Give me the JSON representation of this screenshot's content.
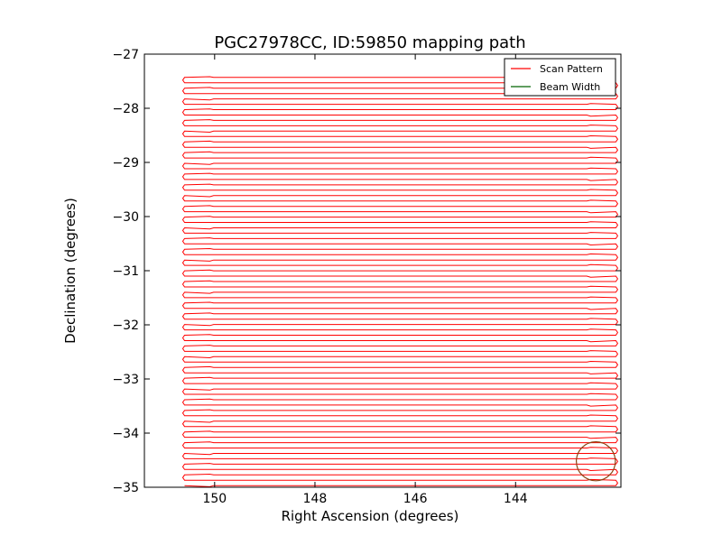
{
  "chart_data": {
    "type": "line",
    "title": "PGC27978CC, ID:59850 mapping path",
    "xlabel": "Right Ascension (degrees)",
    "ylabel": "Declination (degrees)",
    "xlim": [
      151.4,
      141.9
    ],
    "ylim": [
      -35,
      -27
    ],
    "xticks": [
      150,
      148,
      146,
      144
    ],
    "xtick_labels": [
      "150",
      "148",
      "146",
      "144"
    ],
    "yticks": [
      -27,
      -28,
      -29,
      -30,
      -31,
      -32,
      -33,
      -34,
      -35
    ],
    "ytick_labels": [
      "−27",
      "−28",
      "−29",
      "−30",
      "−31",
      "−32",
      "−33",
      "−34",
      "−35"
    ],
    "legend": {
      "position": "top-right",
      "entries": [
        "Scan Pattern",
        "Beam Width"
      ]
    },
    "scan_pattern": {
      "color": "#ff0000",
      "ra_start": 150.6,
      "ra_end": 142.0,
      "dec_start": -34.97,
      "dec_end": -27.43,
      "num_rows": 77,
      "pattern": "boustrophedon raster"
    },
    "beam": {
      "color": "#8b4513",
      "center_ra": 142.4,
      "center_dec": -34.52,
      "radius_deg": 0.36
    },
    "colors": {
      "scan": "#ff0000",
      "beam_legend": "#006400",
      "beam_circle": "#8b4513"
    }
  }
}
